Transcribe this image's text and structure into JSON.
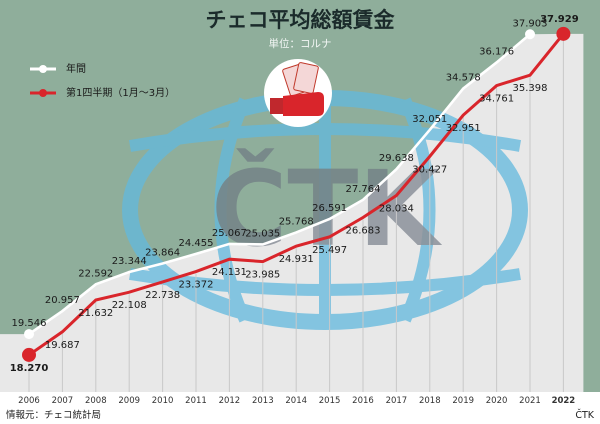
{
  "header": {
    "title": "チェコ平均総額賃金",
    "unit": "単位：コルナ"
  },
  "legend": {
    "annual": "年間",
    "q1": "第1四半期（1月～3月）"
  },
  "watermark": {
    "text": "ČTK"
  },
  "footer": {
    "source": "情報元：チェコ統計局",
    "credit": "ČTK"
  },
  "colors": {
    "background_green": "#8fae9b",
    "annual_line": "#ffffff",
    "q1_line": "#d9252b",
    "grey_area": "#e8e8e8",
    "watermark_blue": "#62b9de",
    "watermark_letters": "#6d7580"
  },
  "icons": {
    "center_icon": "money-hand-icon"
  },
  "chart_data": {
    "type": "line",
    "title": "チェコ平均総額賃金",
    "subtitle": "単位：コルナ",
    "categories": [
      "2006",
      "2007",
      "2008",
      "2009",
      "2010",
      "2011",
      "2012",
      "2013",
      "2014",
      "2015",
      "2016",
      "2017",
      "2018",
      "2019",
      "2020",
      "2021",
      "2022"
    ],
    "ylim": [
      16000,
      40000
    ],
    "grid": false,
    "legend_position": "top-left",
    "series": [
      {
        "name": "年間",
        "color": "#ffffff",
        "values": [
          19546,
          20957,
          22592,
          23344,
          23864,
          24455,
          25067,
          25035,
          25768,
          26591,
          27764,
          29638,
          32051,
          34578,
          36176,
          37903,
          null
        ],
        "labels": [
          "19.546",
          "20.957",
          "22.592",
          "23.344",
          "23.864",
          "24.455",
          "25.067",
          "25.035",
          "25.768",
          "26.591",
          "27.764",
          "29.638",
          "32.051",
          "34.578",
          "36.176",
          "37.903",
          ""
        ]
      },
      {
        "name": "第1四半期（1月～3月）",
        "color": "#d9252b",
        "values": [
          18270,
          19687,
          21632,
          22108,
          22738,
          23372,
          24131,
          23985,
          24931,
          25497,
          26683,
          28034,
          30427,
          32951,
          34761,
          35398,
          37929
        ],
        "labels": [
          "18.270",
          "19.687",
          "21.632",
          "22.108",
          "22.738",
          "23.372",
          "24.131",
          "23.985",
          "24.931",
          "25.497",
          "26.683",
          "28.034",
          "30.427",
          "32.951",
          "34.761",
          "35.398",
          "37.929"
        ]
      }
    ]
  }
}
